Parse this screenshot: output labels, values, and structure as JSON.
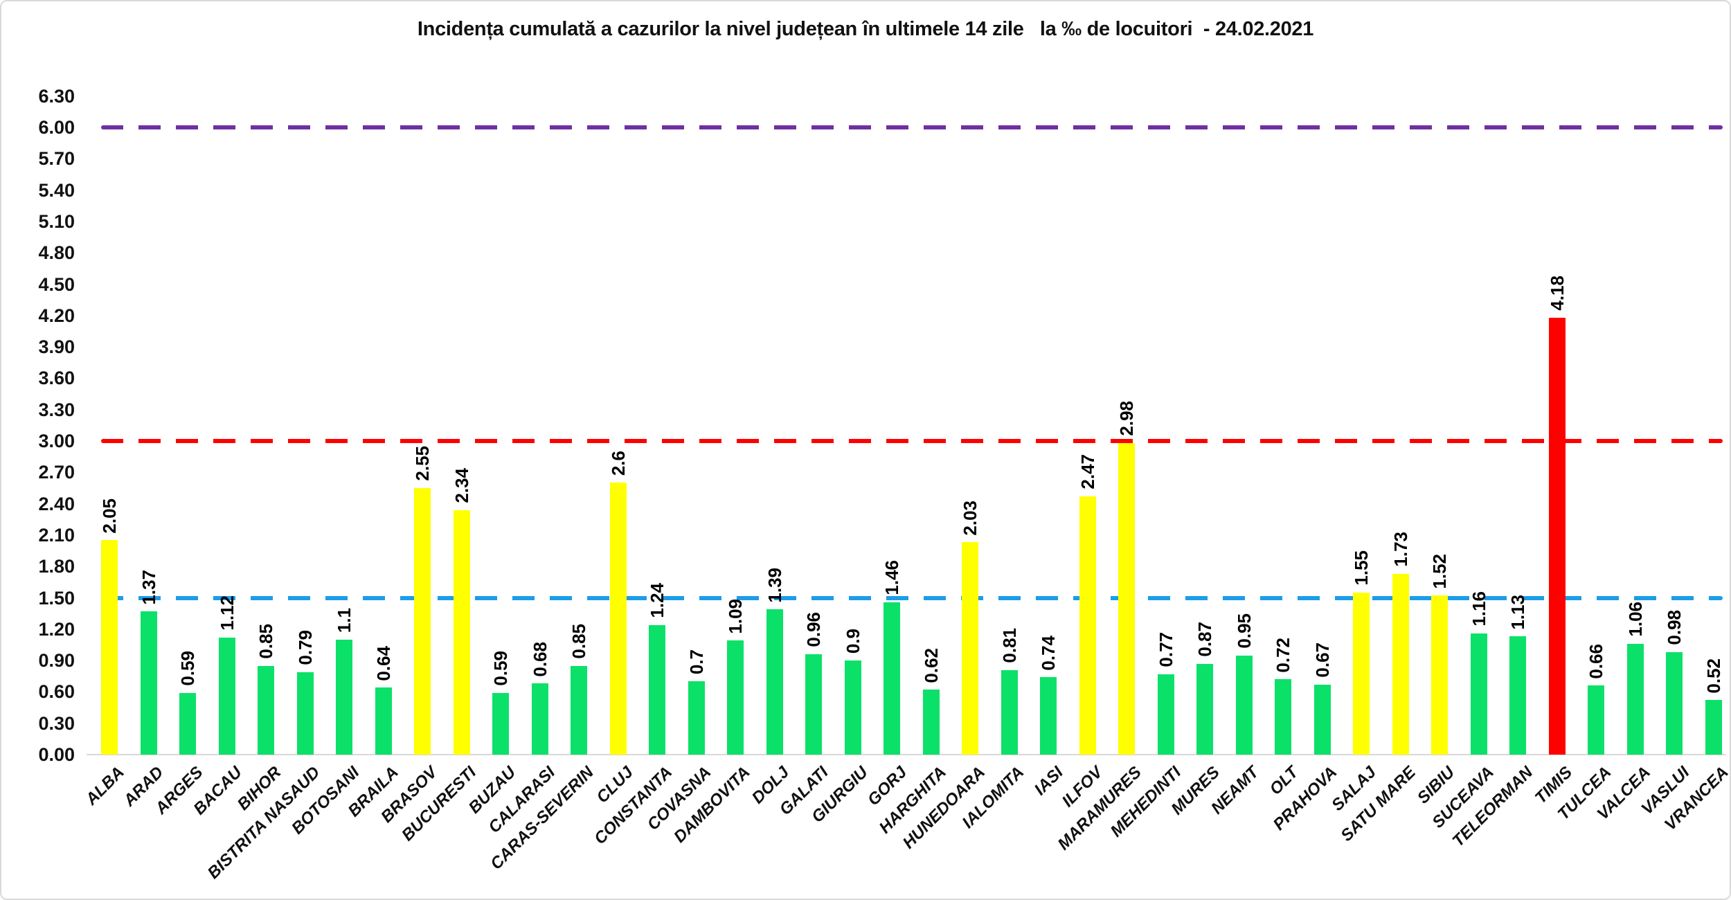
{
  "page": {
    "background": "#FFFFFF",
    "frame_border_color": "#D9D9D9"
  },
  "chart_data": {
    "type": "bar",
    "title": "Incidența cumulată a cazurilor la nivel județean în ultimele 14 zile   la ‰ de locuitori  - 24.02.2021",
    "xlabel": "",
    "ylabel": "",
    "grid": "off",
    "legend": "none",
    "ylim": [
      0,
      6.3
    ],
    "ytick_step": 0.3,
    "y_ticks": [
      "0.00",
      "0.30",
      "0.60",
      "0.90",
      "1.20",
      "1.50",
      "1.80",
      "2.10",
      "2.40",
      "2.70",
      "3.00",
      "3.30",
      "3.60",
      "3.90",
      "4.20",
      "4.50",
      "4.80",
      "5.10",
      "5.40",
      "5.70",
      "6.00",
      "6.30"
    ],
    "value_label_rotation": "vertical-bottom-to-top",
    "category_label_rotation": "45deg-up-right",
    "categories": [
      "ALBA",
      "ARAD",
      "ARGES",
      "BACAU",
      "BIHOR",
      "BISTRITA NASAUD",
      "BOTOSANI",
      "BRAILA",
      "BRASOV",
      "BUCURESTI",
      "BUZAU",
      "CALARASI",
      "CARAS-SEVERIN",
      "CLUJ",
      "CONSTANTA",
      "COVASNA",
      "DAMBOVITA",
      "DOLJ",
      "GALATI",
      "GIURGIU",
      "GORJ",
      "HARGHITA",
      "HUNEDOARA",
      "IALOMITA",
      "IASI",
      "ILFOV",
      "MARAMURES",
      "MEHEDINTI",
      "MURES",
      "NEAMT",
      "OLT",
      "PRAHOVA",
      "SALAJ",
      "SATU MARE",
      "SIBIU",
      "SUCEAVA",
      "TELEORMAN",
      "TIMIS",
      "TULCEA",
      "VALCEA",
      "VASLUI",
      "VRANCEA"
    ],
    "values": [
      2.05,
      1.37,
      0.59,
      1.12,
      0.85,
      0.79,
      1.1,
      0.64,
      2.55,
      2.34,
      0.59,
      0.68,
      0.85,
      2.6,
      1.24,
      0.7,
      1.09,
      1.39,
      0.96,
      0.9,
      1.46,
      0.62,
      2.03,
      0.81,
      0.74,
      2.47,
      2.98,
      0.77,
      0.87,
      0.95,
      0.72,
      0.67,
      1.55,
      1.73,
      1.52,
      1.16,
      1.13,
      4.18,
      0.66,
      1.06,
      0.98,
      0.52
    ],
    "value_labels": [
      "2.05",
      "1.37",
      "0.59",
      "1.12",
      "0.85",
      "0.79",
      "1.1",
      "0.64",
      "2.55",
      "2.34",
      "0.59",
      "0.68",
      "0.85",
      "2.6",
      "1.24",
      "0.7",
      "1.09",
      "1.39",
      "0.96",
      "0.9",
      "1.46",
      "0.62",
      "2.03",
      "0.81",
      "0.74",
      "2.47",
      "2.98",
      "0.77",
      "0.87",
      "0.95",
      "0.72",
      "0.67",
      "1.55",
      "1.73",
      "1.52",
      "1.16",
      "1.13",
      "4.18",
      "0.66",
      "1.06",
      "0.98",
      "0.52"
    ],
    "bar_colors": [
      "#FFFF00",
      "#0BE169",
      "#0BE169",
      "#0BE169",
      "#0BE169",
      "#0BE169",
      "#0BE169",
      "#0BE169",
      "#FFFF00",
      "#FFFF00",
      "#0BE169",
      "#0BE169",
      "#0BE169",
      "#FFFF00",
      "#0BE169",
      "#0BE169",
      "#0BE169",
      "#0BE169",
      "#0BE169",
      "#0BE169",
      "#0BE169",
      "#0BE169",
      "#FFFF00",
      "#0BE169",
      "#0BE169",
      "#FFFF00",
      "#FFFF00",
      "#0BE169",
      "#0BE169",
      "#0BE169",
      "#0BE169",
      "#0BE169",
      "#FFFF00",
      "#FFFF00",
      "#FFFF00",
      "#0BE169",
      "#0BE169",
      "#FF0000",
      "#0BE169",
      "#0BE169",
      "#0BE169",
      "#0BE169"
    ],
    "color_rule": "green below 1.5, yellow 1.5 to 3, red above 3",
    "palette": {
      "green": "#0BE169",
      "yellow": "#FFFF00",
      "red": "#FF0000"
    },
    "thresholds": [
      {
        "value": 6.0,
        "color": "#7030A0",
        "style": "dashed"
      },
      {
        "value": 3.0,
        "color": "#FF0000",
        "style": "dashed"
      },
      {
        "value": 1.5,
        "color": "#1B9DE8",
        "style": "dashed"
      }
    ],
    "axis_line_color": "#D9D9D9"
  }
}
